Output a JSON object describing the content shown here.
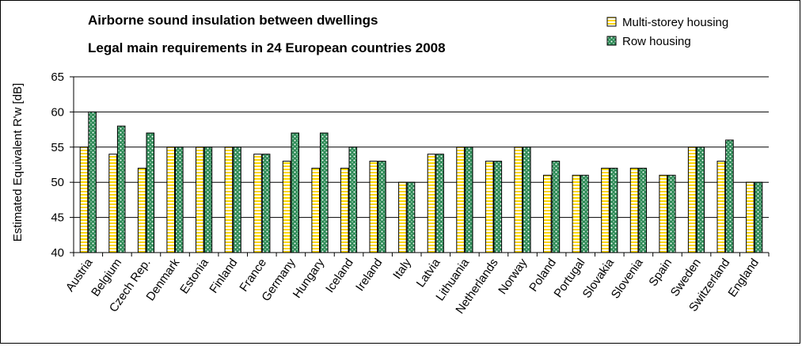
{
  "chart_data": {
    "type": "bar",
    "title": "Airborne sound insulation between dwellings",
    "subtitle": "Legal main requirements in 24 European countries 2008",
    "ylabel": "Estimated Equivalent R'w [dB]",
    "xlabel": "",
    "ylim": [
      40,
      65
    ],
    "yticks": [
      "40",
      "45",
      "50",
      "55",
      "60",
      "65"
    ],
    "grid": true,
    "legend_position": "top-right",
    "categories": [
      "Austria",
      "Belgium",
      "Czech Rep.",
      "Denmark",
      "Estonia",
      "Finland",
      "France",
      "Germany",
      "Hungary",
      "Iceland",
      "Ireland",
      "Italy",
      "Latvia",
      "Lithuania",
      "Netherlands",
      "Norway",
      "Poland",
      "Portugal",
      "Slovakia",
      "Slovenia",
      "Spain",
      "Sweden",
      "Switzerland",
      "England"
    ],
    "series": [
      {
        "name": "Multi-storey housing",
        "color": "#FFD700",
        "values": [
          55,
          54,
          52,
          55,
          55,
          55,
          54,
          53,
          52,
          52,
          53,
          50,
          54,
          55,
          53,
          55,
          51,
          51,
          52,
          52,
          51,
          55,
          53,
          50
        ]
      },
      {
        "name": "Row housing",
        "color": "#2E8B57",
        "values": [
          60,
          58,
          57,
          55,
          55,
          55,
          54,
          57,
          57,
          55,
          53,
          50,
          54,
          55,
          53,
          55,
          53,
          51,
          52,
          52,
          51,
          55,
          56,
          50
        ]
      }
    ]
  }
}
